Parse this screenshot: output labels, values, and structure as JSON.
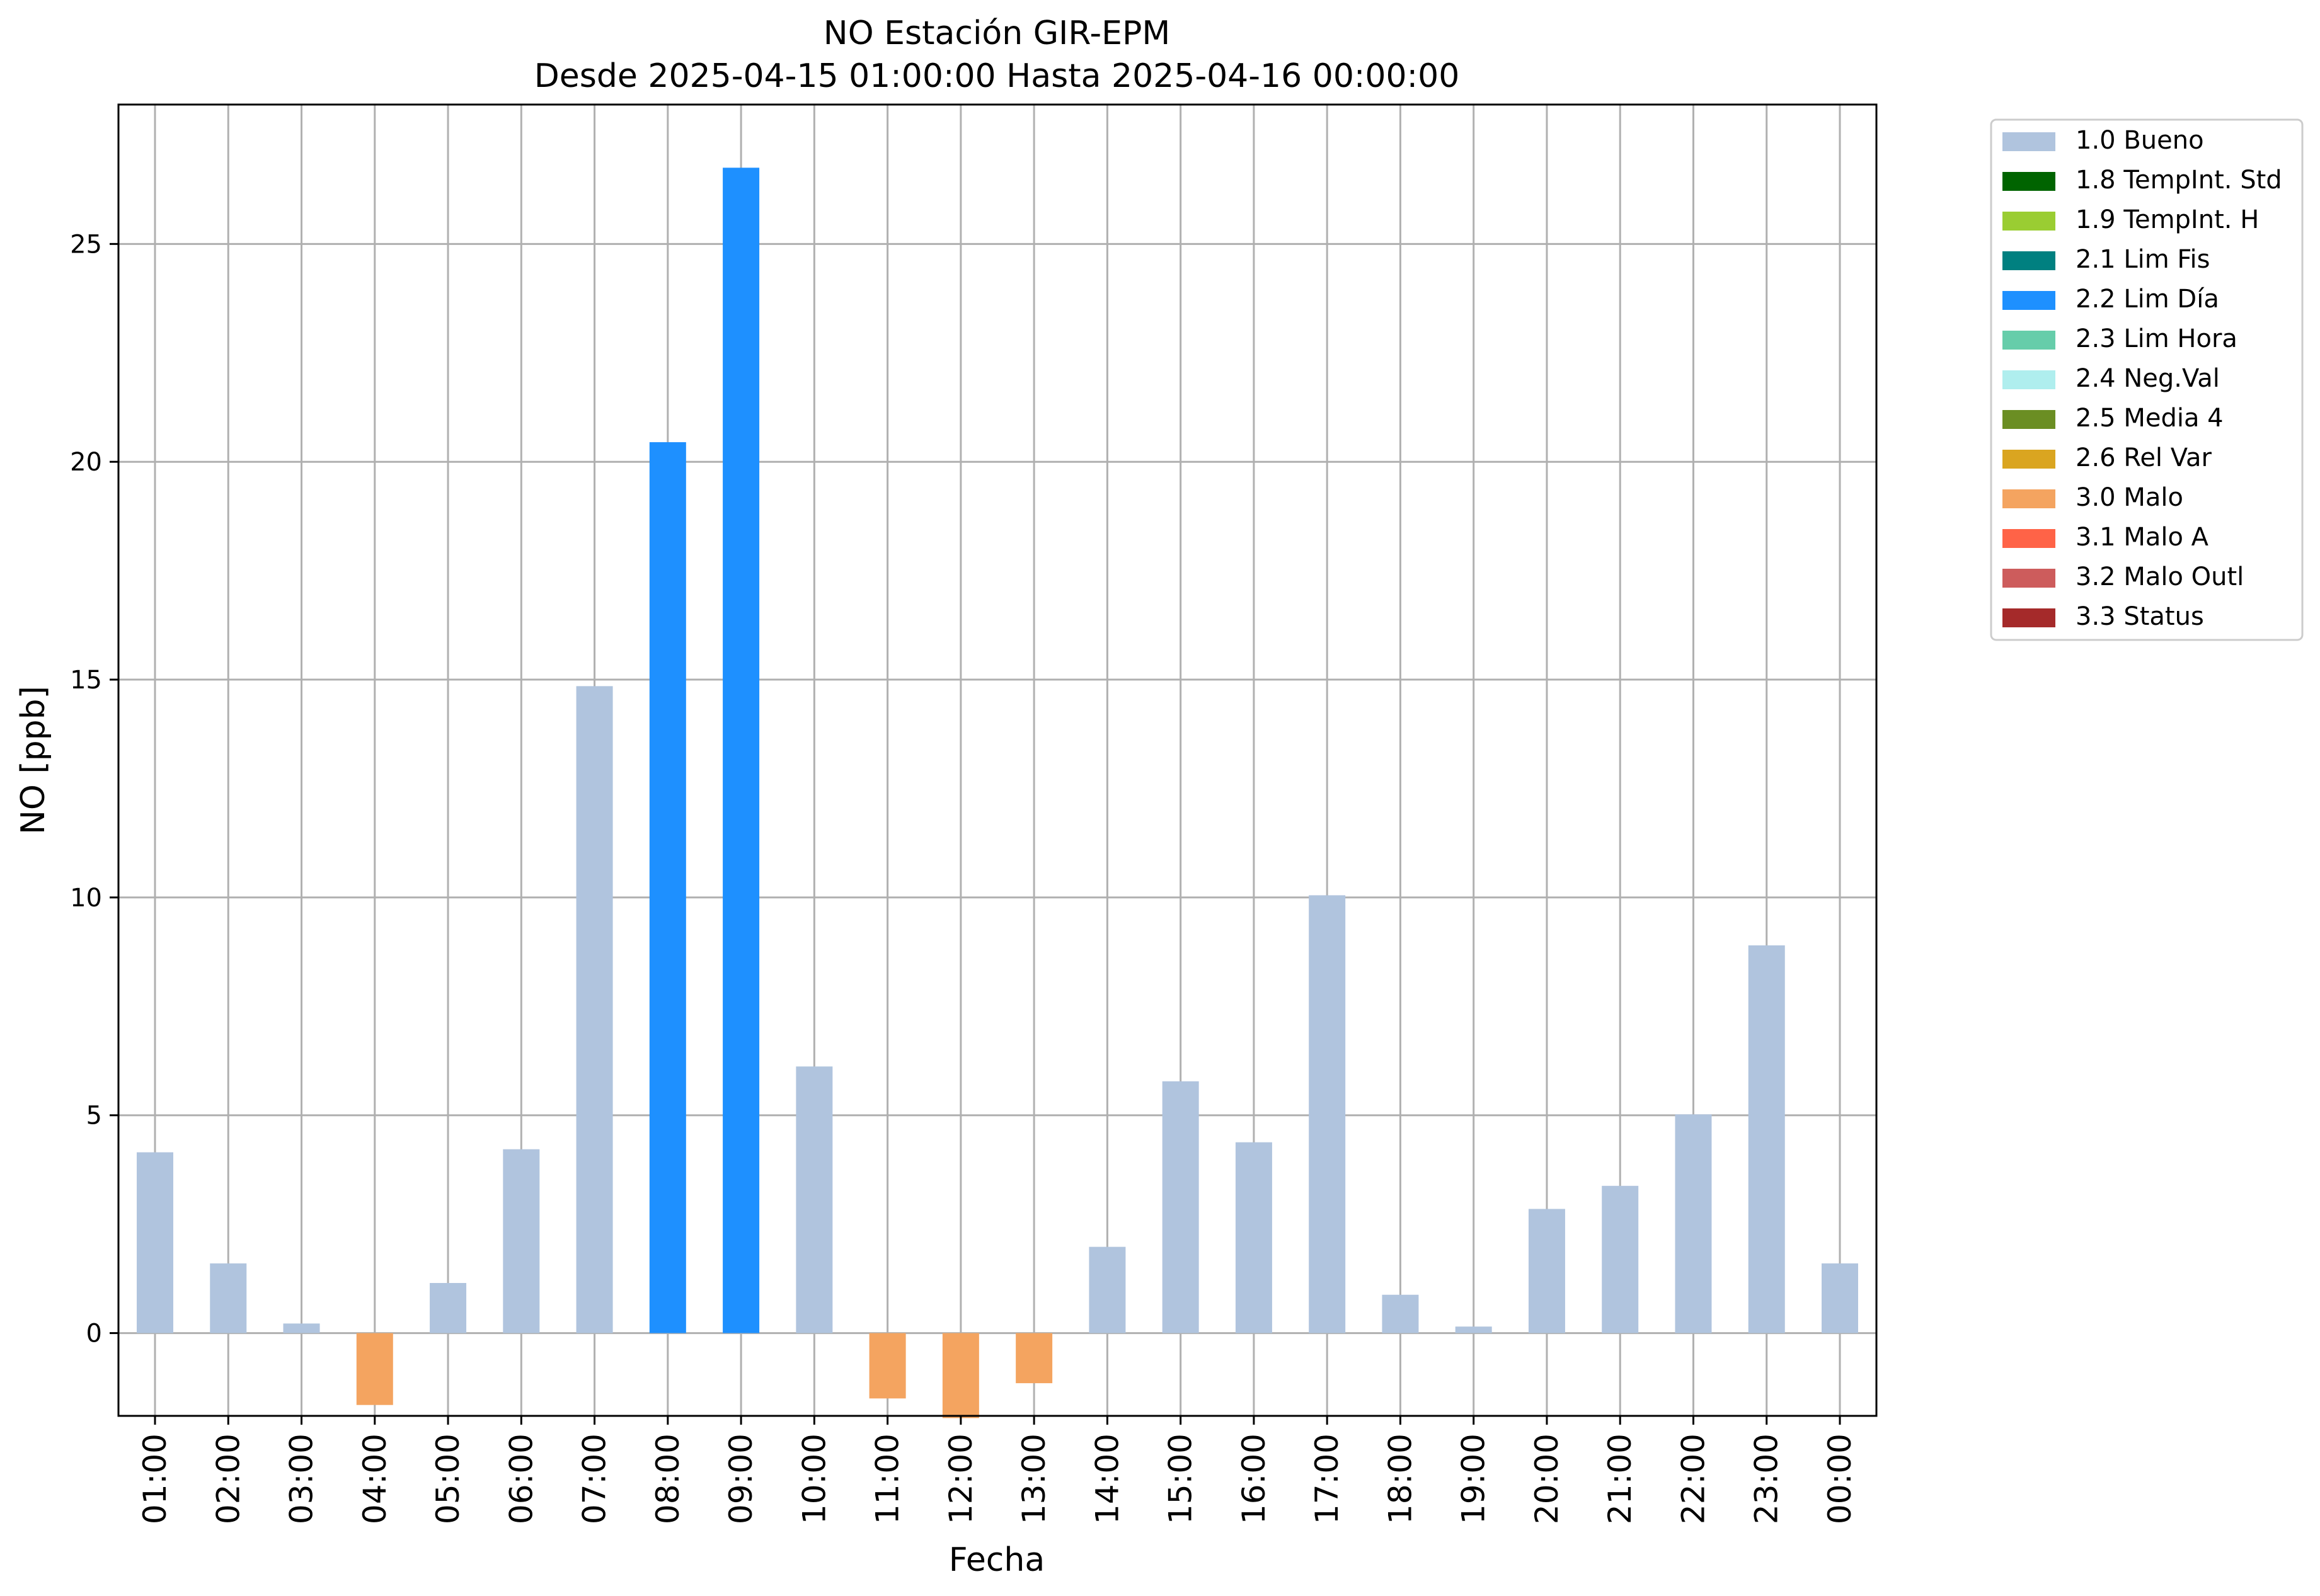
{
  "chart_data": {
    "type": "bar",
    "title": "NO Estación GIR-EPM",
    "subtitle": "Desde 2025-04-15 01:00:00 Hasta 2025-04-16 00:00:00",
    "xlabel": "Fecha",
    "ylabel": "NO [ppb]",
    "ylim": [
      -1.9,
      28.2
    ],
    "yticks": [
      0,
      5,
      10,
      15,
      20,
      25
    ],
    "grid": true,
    "legend_position": "outside-top-right",
    "categories": [
      "01:00",
      "02:00",
      "03:00",
      "04:00",
      "05:00",
      "06:00",
      "07:00",
      "08:00",
      "09:00",
      "10:00",
      "11:00",
      "12:00",
      "13:00",
      "14:00",
      "15:00",
      "16:00",
      "17:00",
      "18:00",
      "19:00",
      "20:00",
      "21:00",
      "22:00",
      "23:00",
      "00:00"
    ],
    "values": [
      4.15,
      1.6,
      0.22,
      -1.65,
      1.15,
      4.22,
      14.85,
      20.45,
      26.75,
      6.12,
      -1.5,
      -1.95,
      -1.15,
      1.98,
      5.78,
      4.38,
      10.05,
      0.88,
      0.15,
      2.85,
      3.38,
      5.02,
      8.9,
      1.6
    ],
    "flags": [
      "1.0 Bueno",
      "1.0 Bueno",
      "1.0 Bueno",
      "3.0 Malo",
      "1.0 Bueno",
      "1.0 Bueno",
      "1.0 Bueno",
      "2.2 Lim Día",
      "2.2 Lim Día",
      "1.0 Bueno",
      "3.0 Malo",
      "3.0 Malo",
      "3.0 Malo",
      "1.0 Bueno",
      "1.0 Bueno",
      "1.0 Bueno",
      "1.0 Bueno",
      "1.0 Bueno",
      "1.0 Bueno",
      "1.0 Bueno",
      "1.0 Bueno",
      "1.0 Bueno",
      "1.0 Bueno",
      "1.0 Bueno"
    ],
    "legend": [
      {
        "label": "1.0 Bueno",
        "color": "#b0c4de"
      },
      {
        "label": "1.8 TempInt. Std",
        "color": "#006400"
      },
      {
        "label": "1.9 TempInt. H",
        "color": "#9acd32"
      },
      {
        "label": "2.1 Lim Fis",
        "color": "#008080"
      },
      {
        "label": "2.2 Lim Día",
        "color": "#1e90ff"
      },
      {
        "label": "2.3 Lim Hora",
        "color": "#66cdaa"
      },
      {
        "label": "2.4 Neg.Val",
        "color": "#afeeee"
      },
      {
        "label": "2.5 Media 4",
        "color": "#6b8e23"
      },
      {
        "label": "2.6 Rel Var",
        "color": "#daa520"
      },
      {
        "label": "3.0 Malo",
        "color": "#f4a460"
      },
      {
        "label": "3.1 Malo A",
        "color": "#ff6347"
      },
      {
        "label": "3.2 Malo Outl",
        "color": "#cd5c5c"
      },
      {
        "label": "3.3 Status",
        "color": "#a52a2a"
      }
    ]
  }
}
